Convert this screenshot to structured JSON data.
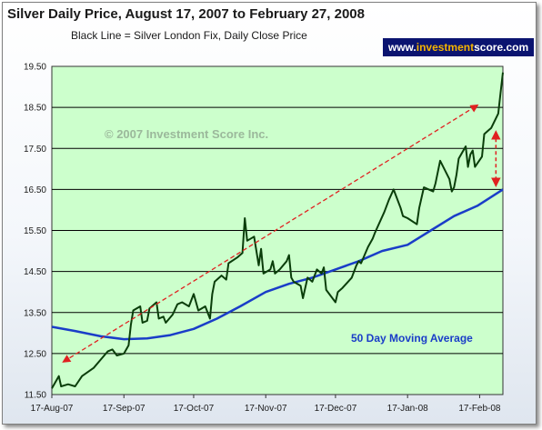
{
  "header": {
    "title": "Silver Daily Price, August 17, 2007 to February 27, 2008",
    "subtitle": "Black Line = Silver London Fix, Daily Close Price",
    "brand_prefix": "www.",
    "brand_accent": "investment",
    "brand_suffix": "score.com"
  },
  "chart_data": {
    "type": "line",
    "y_ticks": [
      "11.50",
      "12.50",
      "13.50",
      "14.50",
      "15.50",
      "16.50",
      "17.50",
      "18.50",
      "19.50"
    ],
    "x_tick_labels": [
      "17-Aug-07",
      "17-Sep-07",
      "17-Oct-07",
      "17-Nov-07",
      "17-Dec-07",
      "17-Jan-08",
      "17-Feb-08"
    ],
    "ylim": [
      11.5,
      19.5
    ],
    "xlim": [
      "2007-08-17",
      "2008-02-27"
    ],
    "grid": "horizontal",
    "plot_background": "#ccffcc",
    "watermark": "© 2007 Investment Score Inc.",
    "annotation_label": "50 Day Moving Average",
    "series": [
      {
        "name": "Silver London Fix, Daily Close Price",
        "color": "#0a3d0a",
        "points": [
          [
            "2007-08-17",
            11.65
          ],
          [
            "2007-08-20",
            11.95
          ],
          [
            "2007-08-21",
            11.7
          ],
          [
            "2007-08-24",
            11.75
          ],
          [
            "2007-08-27",
            11.7
          ],
          [
            "2007-08-30",
            11.95
          ],
          [
            "2007-09-04",
            12.15
          ],
          [
            "2007-09-07",
            12.35
          ],
          [
            "2007-09-10",
            12.55
          ],
          [
            "2007-09-12",
            12.6
          ],
          [
            "2007-09-14",
            12.45
          ],
          [
            "2007-09-17",
            12.5
          ],
          [
            "2007-09-19",
            12.7
          ],
          [
            "2007-09-20",
            13.2
          ],
          [
            "2007-09-21",
            13.55
          ],
          [
            "2007-09-24",
            13.65
          ],
          [
            "2007-09-25",
            13.25
          ],
          [
            "2007-09-27",
            13.3
          ],
          [
            "2007-09-28",
            13.6
          ],
          [
            "2007-10-01",
            13.75
          ],
          [
            "2007-10-02",
            13.35
          ],
          [
            "2007-10-04",
            13.4
          ],
          [
            "2007-10-05",
            13.25
          ],
          [
            "2007-10-08",
            13.45
          ],
          [
            "2007-10-10",
            13.7
          ],
          [
            "2007-10-12",
            13.75
          ],
          [
            "2007-10-15",
            13.65
          ],
          [
            "2007-10-17",
            13.95
          ],
          [
            "2007-10-19",
            13.55
          ],
          [
            "2007-10-22",
            13.65
          ],
          [
            "2007-10-24",
            13.35
          ],
          [
            "2007-10-25",
            13.95
          ],
          [
            "2007-10-26",
            14.25
          ],
          [
            "2007-10-29",
            14.4
          ],
          [
            "2007-10-31",
            14.3
          ],
          [
            "2007-11-01",
            14.7
          ],
          [
            "2007-11-05",
            14.85
          ],
          [
            "2007-11-07",
            14.95
          ],
          [
            "2007-11-08",
            15.8
          ],
          [
            "2007-11-09",
            15.25
          ],
          [
            "2007-11-12",
            15.35
          ],
          [
            "2007-11-14",
            14.65
          ],
          [
            "2007-11-15",
            15.05
          ],
          [
            "2007-11-16",
            14.45
          ],
          [
            "2007-11-19",
            14.55
          ],
          [
            "2007-11-20",
            14.75
          ],
          [
            "2007-11-21",
            14.45
          ],
          [
            "2007-11-23",
            14.55
          ],
          [
            "2007-11-26",
            14.75
          ],
          [
            "2007-11-27",
            14.9
          ],
          [
            "2007-11-28",
            14.35
          ],
          [
            "2007-11-29",
            14.25
          ],
          [
            "2007-12-02",
            14.15
          ],
          [
            "2007-12-03",
            13.85
          ],
          [
            "2007-12-05",
            14.35
          ],
          [
            "2007-12-07",
            14.25
          ],
          [
            "2007-12-09",
            14.55
          ],
          [
            "2007-12-11",
            14.45
          ],
          [
            "2007-12-12",
            14.6
          ],
          [
            "2007-12-13",
            14.05
          ],
          [
            "2007-12-17",
            13.75
          ],
          [
            "2007-12-18",
            14.0
          ],
          [
            "2007-12-20",
            14.1
          ],
          [
            "2007-12-24",
            14.35
          ],
          [
            "2007-12-26",
            14.65
          ],
          [
            "2007-12-27",
            14.75
          ],
          [
            "2007-12-28",
            14.7
          ],
          [
            "2007-12-31",
            15.1
          ],
          [
            "2008-01-02",
            15.3
          ],
          [
            "2008-01-03",
            15.45
          ],
          [
            "2008-01-07",
            15.95
          ],
          [
            "2008-01-09",
            16.25
          ],
          [
            "2008-01-11",
            16.5
          ],
          [
            "2008-01-14",
            16.05
          ],
          [
            "2008-01-15",
            15.85
          ],
          [
            "2008-01-17",
            15.8
          ],
          [
            "2008-01-21",
            15.65
          ],
          [
            "2008-01-22",
            16.05
          ],
          [
            "2008-01-24",
            16.55
          ],
          [
            "2008-01-28",
            16.45
          ],
          [
            "2008-01-29",
            16.65
          ],
          [
            "2008-01-31",
            17.2
          ],
          [
            "2008-02-04",
            16.75
          ],
          [
            "2008-02-05",
            16.45
          ],
          [
            "2008-02-06",
            16.55
          ],
          [
            "2008-02-07",
            16.85
          ],
          [
            "2008-02-08",
            17.25
          ],
          [
            "2008-02-11",
            17.55
          ],
          [
            "2008-02-12",
            17.05
          ],
          [
            "2008-02-13",
            17.35
          ],
          [
            "2008-02-14",
            17.45
          ],
          [
            "2008-02-15",
            17.05
          ],
          [
            "2008-02-18",
            17.3
          ],
          [
            "2008-02-19",
            17.85
          ],
          [
            "2008-02-21",
            17.95
          ],
          [
            "2008-02-22",
            18.0
          ],
          [
            "2008-02-25",
            18.35
          ],
          [
            "2008-02-26",
            18.85
          ],
          [
            "2008-02-27",
            19.35
          ]
        ]
      },
      {
        "name": "50 Day Moving Average",
        "color": "#1a3dc8",
        "points": [
          [
            "2007-08-17",
            13.15
          ],
          [
            "2007-08-27",
            13.05
          ],
          [
            "2007-09-07",
            12.92
          ],
          [
            "2007-09-17",
            12.85
          ],
          [
            "2007-09-27",
            12.87
          ],
          [
            "2007-10-07",
            12.95
          ],
          [
            "2007-10-17",
            13.1
          ],
          [
            "2007-10-27",
            13.35
          ],
          [
            "2007-11-06",
            13.65
          ],
          [
            "2007-11-17",
            14.0
          ],
          [
            "2007-11-27",
            14.2
          ],
          [
            "2007-12-07",
            14.35
          ],
          [
            "2007-12-17",
            14.55
          ],
          [
            "2007-12-27",
            14.75
          ],
          [
            "2008-01-06",
            15.0
          ],
          [
            "2008-01-17",
            15.15
          ],
          [
            "2008-01-27",
            15.5
          ],
          [
            "2008-02-06",
            15.85
          ],
          [
            "2008-02-16",
            16.1
          ],
          [
            "2008-02-27",
            16.5
          ]
        ]
      }
    ],
    "annotations": [
      {
        "type": "trend-arrow",
        "from": [
          "2007-08-22",
          12.3
        ],
        "to": [
          "2008-02-16",
          18.55
        ],
        "color": "#e02020"
      },
      {
        "type": "gap-arrow",
        "x": "2008-02-24",
        "from": 16.6,
        "to": 17.9,
        "color": "#e02020"
      }
    ]
  }
}
